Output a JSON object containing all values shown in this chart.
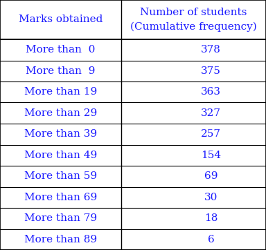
{
  "col1_header": "Marks obtained",
  "col2_header_line1": "Number of students",
  "col2_header_line2": "(Cumulative frequency)",
  "rows": [
    [
      "More than  0",
      "378"
    ],
    [
      "More than  9",
      "375"
    ],
    [
      "More than 19",
      "363"
    ],
    [
      "More than 29",
      "327"
    ],
    [
      "More than 39",
      "257"
    ],
    [
      "More than 49",
      "154"
    ],
    [
      "More than 59",
      "69"
    ],
    [
      "More than 69",
      "30"
    ],
    [
      "More than 79",
      "18"
    ],
    [
      "More than 89",
      "6"
    ]
  ],
  "bg_color": "#ffffff",
  "border_color": "#000000",
  "text_color": "#1a1aff",
  "font_size": 11,
  "col_split": 0.455,
  "fig_width": 3.84,
  "fig_height": 3.62,
  "dpi": 100
}
